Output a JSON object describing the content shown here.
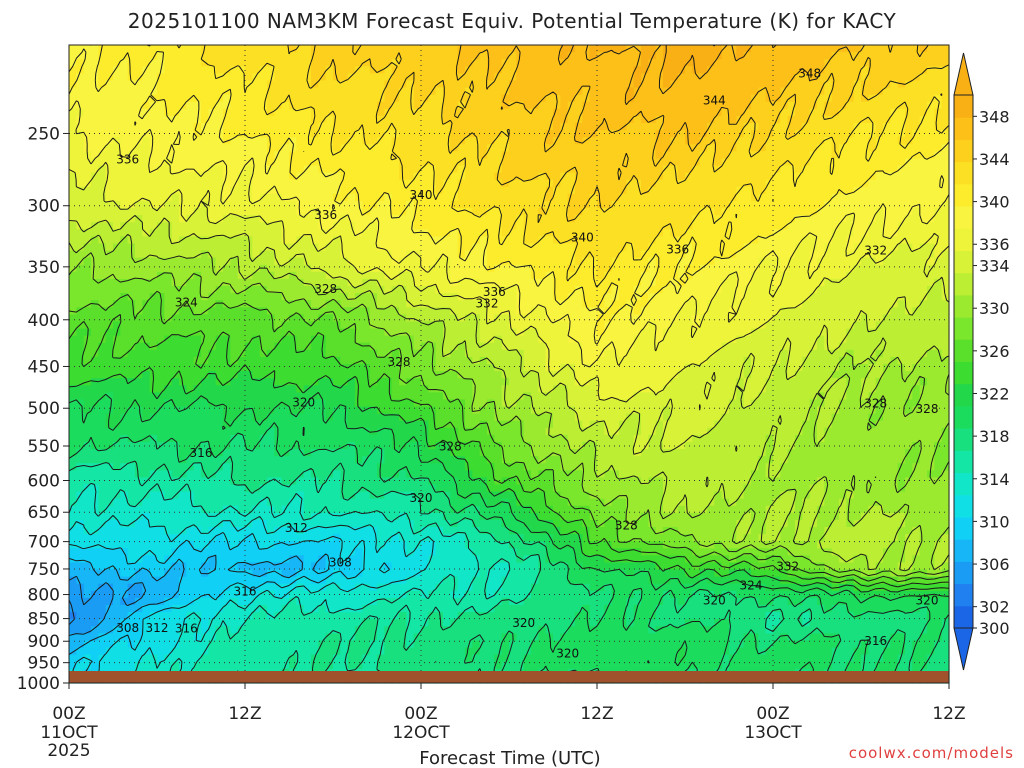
{
  "chart_data": {
    "type": "heatmap",
    "title": "2025101100 NAM3KM Forecast Equiv. Potential Temperature (K) for KACY",
    "xlabel": "Forecast Time (UTC)",
    "ylabel": "",
    "credit": "coolwx.com/models",
    "x_ticks": [
      {
        "hour": 0,
        "label": "00Z",
        "sub": "11OCT",
        "sub2": "2025"
      },
      {
        "hour": 12,
        "label": "12Z",
        "sub": "",
        "sub2": ""
      },
      {
        "hour": 24,
        "label": "00Z",
        "sub": "12OCT",
        "sub2": ""
      },
      {
        "hour": 36,
        "label": "12Z",
        "sub": "",
        "sub2": ""
      },
      {
        "hour": 48,
        "label": "00Z",
        "sub": "13OCT",
        "sub2": ""
      },
      {
        "hour": 60,
        "label": "12Z",
        "sub": "",
        "sub2": ""
      }
    ],
    "xlim": [
      0,
      60
    ],
    "y_ticks": [
      250,
      300,
      350,
      400,
      450,
      500,
      550,
      600,
      650,
      700,
      750,
      800,
      850,
      900,
      950,
      1000
    ],
    "ylim": [
      1000,
      200
    ],
    "colorbar": {
      "levels": [
        300,
        302,
        304,
        306,
        308,
        310,
        312,
        314,
        316,
        318,
        320,
        322,
        324,
        326,
        328,
        330,
        332,
        334,
        336,
        338,
        340,
        342,
        344,
        346,
        348,
        350
      ],
      "labels": [
        300,
        302,
        306,
        310,
        314,
        318,
        322,
        326,
        330,
        334,
        336,
        340,
        344,
        348
      ],
      "colors": [
        "#1a66e6",
        "#2080f0",
        "#1a9cf5",
        "#17b6f7",
        "#10d0f5",
        "#10e0e6",
        "#12e6c8",
        "#14e6a6",
        "#18e07e",
        "#1cdc5e",
        "#22d84a",
        "#3cdc30",
        "#5ae02a",
        "#7ae62c",
        "#9cea30",
        "#bcee34",
        "#d8f238",
        "#eef43a",
        "#f8f440",
        "#fcec2c",
        "#fce024",
        "#fcd01c",
        "#fcc018",
        "#f8b014"
      ]
    },
    "profiles": [
      {
        "hour": 0,
        "points": [
          [
            1000,
            309
          ],
          [
            950,
            309
          ],
          [
            900,
            307
          ],
          [
            850,
            303
          ],
          [
            800,
            305
          ],
          [
            750,
            307
          ],
          [
            700,
            311
          ],
          [
            650,
            313
          ],
          [
            600,
            315
          ],
          [
            550,
            318
          ],
          [
            500,
            320
          ],
          [
            450,
            323
          ],
          [
            400,
            325
          ],
          [
            350,
            328
          ],
          [
            300,
            333
          ],
          [
            250,
            336
          ],
          [
            200,
            338
          ]
        ]
      },
      {
        "hour": 6,
        "points": [
          [
            1000,
            313
          ],
          [
            950,
            313
          ],
          [
            900,
            311
          ],
          [
            850,
            311
          ],
          [
            800,
            306
          ],
          [
            750,
            309
          ],
          [
            700,
            311
          ],
          [
            650,
            313
          ],
          [
            600,
            315
          ],
          [
            550,
            318
          ],
          [
            500,
            320
          ],
          [
            450,
            323
          ],
          [
            400,
            325
          ],
          [
            350,
            329
          ],
          [
            300,
            334
          ],
          [
            250,
            337
          ],
          [
            200,
            339
          ]
        ]
      },
      {
        "hour": 12,
        "points": [
          [
            1000,
            315
          ],
          [
            950,
            315
          ],
          [
            900,
            315
          ],
          [
            850,
            314
          ],
          [
            800,
            312
          ],
          [
            750,
            307
          ],
          [
            700,
            310
          ],
          [
            650,
            314
          ],
          [
            600,
            316
          ],
          [
            550,
            318
          ],
          [
            500,
            320
          ],
          [
            450,
            323
          ],
          [
            400,
            325
          ],
          [
            350,
            330
          ],
          [
            300,
            335
          ],
          [
            250,
            338
          ],
          [
            200,
            341
          ]
        ]
      },
      {
        "hour": 18,
        "points": [
          [
            1000,
            315
          ],
          [
            950,
            316
          ],
          [
            900,
            316
          ],
          [
            850,
            315
          ],
          [
            800,
            313
          ],
          [
            750,
            308
          ],
          [
            700,
            310
          ],
          [
            650,
            314
          ],
          [
            600,
            316
          ],
          [
            550,
            318
          ],
          [
            500,
            320
          ],
          [
            450,
            323
          ],
          [
            400,
            326
          ],
          [
            350,
            333
          ],
          [
            300,
            337
          ],
          [
            250,
            340
          ],
          [
            200,
            343
          ]
        ]
      },
      {
        "hour": 24,
        "points": [
          [
            1000,
            316
          ],
          [
            950,
            317
          ],
          [
            900,
            317
          ],
          [
            850,
            316
          ],
          [
            800,
            314
          ],
          [
            750,
            312
          ],
          [
            700,
            312
          ],
          [
            650,
            315
          ],
          [
            600,
            318
          ],
          [
            550,
            320
          ],
          [
            500,
            324
          ],
          [
            450,
            327
          ],
          [
            400,
            330
          ],
          [
            350,
            336
          ],
          [
            300,
            339
          ],
          [
            250,
            341
          ],
          [
            200,
            343
          ]
        ]
      },
      {
        "hour": 30,
        "points": [
          [
            1000,
            317
          ],
          [
            950,
            318
          ],
          [
            900,
            318
          ],
          [
            850,
            317
          ],
          [
            800,
            315
          ],
          [
            750,
            314
          ],
          [
            700,
            316
          ],
          [
            650,
            320
          ],
          [
            600,
            324
          ],
          [
            550,
            327
          ],
          [
            500,
            329
          ],
          [
            450,
            331
          ],
          [
            400,
            334
          ],
          [
            350,
            338
          ],
          [
            300,
            341
          ],
          [
            250,
            343
          ],
          [
            200,
            345
          ]
        ]
      },
      {
        "hour": 36,
        "points": [
          [
            1000,
            318
          ],
          [
            950,
            319
          ],
          [
            900,
            319
          ],
          [
            850,
            318
          ],
          [
            800,
            318
          ],
          [
            750,
            320
          ],
          [
            700,
            324
          ],
          [
            650,
            327
          ],
          [
            600,
            329
          ],
          [
            550,
            331
          ],
          [
            500,
            333
          ],
          [
            450,
            336
          ],
          [
            400,
            338
          ],
          [
            350,
            340
          ],
          [
            300,
            342
          ],
          [
            250,
            344
          ],
          [
            200,
            346
          ]
        ]
      },
      {
        "hour": 42,
        "points": [
          [
            1000,
            318
          ],
          [
            950,
            319
          ],
          [
            900,
            319
          ],
          [
            850,
            318
          ],
          [
            800,
            318
          ],
          [
            750,
            322
          ],
          [
            700,
            328
          ],
          [
            650,
            330
          ],
          [
            600,
            331
          ],
          [
            550,
            332
          ],
          [
            500,
            333
          ],
          [
            450,
            334
          ],
          [
            400,
            336
          ],
          [
            350,
            338
          ],
          [
            300,
            341
          ],
          [
            250,
            344
          ],
          [
            200,
            347
          ]
        ]
      },
      {
        "hour": 48,
        "points": [
          [
            1000,
            318
          ],
          [
            950,
            319
          ],
          [
            900,
            318
          ],
          [
            850,
            316
          ],
          [
            800,
            318
          ],
          [
            750,
            324
          ],
          [
            700,
            330
          ],
          [
            650,
            330
          ],
          [
            600,
            330
          ],
          [
            550,
            330
          ],
          [
            500,
            331
          ],
          [
            450,
            332
          ],
          [
            400,
            334
          ],
          [
            350,
            336
          ],
          [
            300,
            339
          ],
          [
            250,
            342
          ],
          [
            200,
            346
          ]
        ]
      },
      {
        "hour": 54,
        "points": [
          [
            1000,
            318
          ],
          [
            950,
            318
          ],
          [
            900,
            318
          ],
          [
            850,
            317
          ],
          [
            800,
            320
          ],
          [
            750,
            330
          ],
          [
            700,
            331
          ],
          [
            650,
            330
          ],
          [
            600,
            329
          ],
          [
            550,
            329
          ],
          [
            500,
            329
          ],
          [
            450,
            330
          ],
          [
            400,
            332
          ],
          [
            350,
            334
          ],
          [
            300,
            337
          ],
          [
            250,
            340
          ],
          [
            200,
            344
          ]
        ]
      },
      {
        "hour": 60,
        "points": [
          [
            1000,
            318
          ],
          [
            950,
            318
          ],
          [
            900,
            318
          ],
          [
            850,
            318
          ],
          [
            800,
            320
          ],
          [
            750,
            329
          ],
          [
            700,
            330
          ],
          [
            650,
            329
          ],
          [
            600,
            328
          ],
          [
            550,
            328
          ],
          [
            500,
            328
          ],
          [
            450,
            329
          ],
          [
            400,
            331
          ],
          [
            350,
            333
          ],
          [
            300,
            336
          ],
          [
            250,
            339
          ],
          [
            200,
            343
          ]
        ]
      }
    ],
    "contour_labels": [
      {
        "hour": 24,
        "pressure": 292,
        "value": "340"
      },
      {
        "hour": 35,
        "pressure": 325,
        "value": "340"
      },
      {
        "hour": 17.5,
        "pressure": 370,
        "value": "328"
      },
      {
        "hour": 8,
        "pressure": 383,
        "value": "324"
      },
      {
        "hour": 16,
        "pressure": 493,
        "value": "320"
      },
      {
        "hour": 9,
        "pressure": 560,
        "value": "316"
      },
      {
        "hour": 15.5,
        "pressure": 676,
        "value": "312"
      },
      {
        "hour": 18.5,
        "pressure": 738,
        "value": "308"
      },
      {
        "hour": 26,
        "pressure": 551,
        "value": "328"
      },
      {
        "hour": 38,
        "pressure": 672,
        "value": "328"
      },
      {
        "hour": 49,
        "pressure": 745,
        "value": "332"
      },
      {
        "hour": 46.5,
        "pressure": 782,
        "value": "324"
      },
      {
        "hour": 55,
        "pressure": 336,
        "value": "332"
      },
      {
        "hour": 31,
        "pressure": 860,
        "value": "320"
      },
      {
        "hour": 34,
        "pressure": 928,
        "value": "320"
      },
      {
        "hour": 8,
        "pressure": 872,
        "value": "316"
      },
      {
        "hour": 6,
        "pressure": 870,
        "value": "312"
      },
      {
        "hour": 4,
        "pressure": 870,
        "value": "308"
      },
      {
        "hour": 12,
        "pressure": 990,
        "value": "316"
      },
      {
        "hour": 55,
        "pressure": 900,
        "value": "316"
      },
      {
        "hour": 58.5,
        "pressure": 812,
        "value": "320"
      },
      {
        "hour": 44,
        "pressure": 812,
        "value": "320"
      },
      {
        "hour": 4,
        "pressure": 267,
        "value": "336"
      },
      {
        "hour": 44,
        "pressure": 230,
        "value": "344"
      },
      {
        "hour": 50.5,
        "pressure": 215,
        "value": "348"
      },
      {
        "hour": 41.5,
        "pressure": 335,
        "value": "336"
      },
      {
        "hour": 29,
        "pressure": 373,
        "value": "336"
      },
      {
        "hour": 28.5,
        "pressure": 384,
        "value": "332"
      },
      {
        "hour": 24,
        "pressure": 627,
        "value": "320"
      },
      {
        "hour": 12,
        "pressure": 794,
        "value": "316"
      },
      {
        "hour": 55,
        "pressure": 494,
        "value": "328"
      },
      {
        "hour": 58.5,
        "pressure": 501,
        "value": "328"
      },
      {
        "hour": 22.5,
        "pressure": 445,
        "value": "328"
      },
      {
        "hour": 17.5,
        "pressure": 307,
        "value": "336"
      }
    ]
  }
}
